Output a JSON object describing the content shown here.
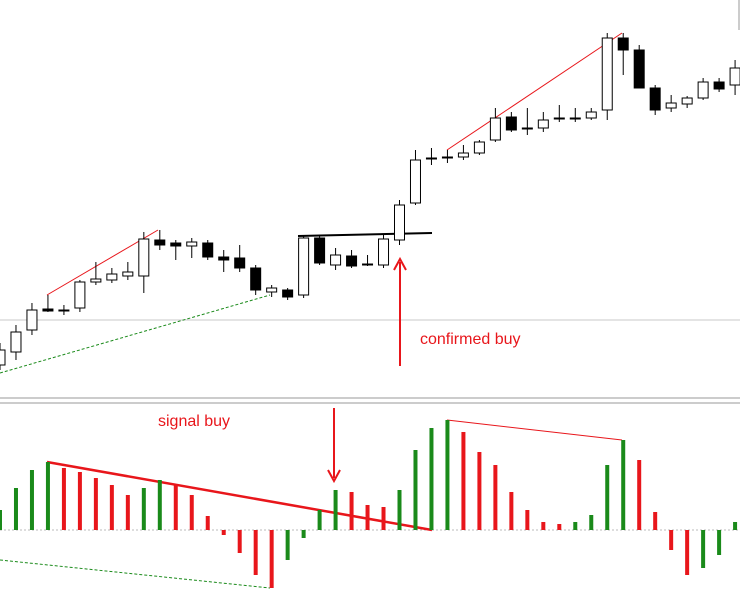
{
  "chart_data": [
    {
      "type": "candlestick",
      "open": [
        35,
        48,
        70,
        91,
        90,
        92,
        118,
        120,
        124,
        124,
        160,
        157,
        154,
        157,
        143,
        142,
        132,
        108,
        110,
        105,
        162,
        135,
        144,
        136,
        135,
        160,
        197,
        242,
        242,
        243,
        247,
        260,
        283,
        272,
        272,
        282,
        282,
        282,
        290,
        362,
        350,
        312,
        292,
        296,
        302,
        318,
        315
      ],
      "high": [
        57,
        75,
        97,
        105,
        95,
        120,
        138,
        132,
        138,
        168,
        170,
        160,
        162,
        160,
        150,
        155,
        135,
        115,
        112,
        165,
        164,
        152,
        150,
        145,
        165,
        200,
        250,
        252,
        250,
        255,
        260,
        292,
        288,
        292,
        288,
        295,
        292,
        292,
        367,
        367,
        355,
        315,
        305,
        304,
        322,
        322,
        340
      ],
      "low": [
        30,
        40,
        65,
        88,
        85,
        88,
        115,
        117,
        120,
        107,
        150,
        140,
        142,
        140,
        128,
        128,
        105,
        103,
        100,
        102,
        135,
        130,
        132,
        134,
        132,
        155,
        195,
        235,
        237,
        240,
        245,
        258,
        268,
        265,
        268,
        278,
        278,
        280,
        280,
        325,
        312,
        285,
        288,
        292,
        300,
        308,
        305
      ],
      "close": [
        50,
        68,
        90,
        89,
        90,
        118,
        121,
        126,
        128,
        161,
        155,
        154,
        158,
        143,
        140,
        132,
        110,
        112,
        103,
        162,
        137,
        145,
        134,
        136,
        161,
        195,
        240,
        242,
        243,
        247,
        258,
        282,
        270,
        272,
        280,
        282,
        282,
        288,
        362,
        350,
        312,
        290,
        297,
        302,
        318,
        311,
        332
      ],
      "up_color": "#ffffff",
      "down_color": "#000000",
      "ylim": [
        0,
        400
      ],
      "annotation": "confirmed buy"
    },
    {
      "type": "bar",
      "values": [
        20,
        42,
        60,
        68,
        62,
        58,
        52,
        45,
        35,
        42,
        50,
        45,
        35,
        14,
        -5,
        -23,
        -45,
        -58,
        -30,
        -8,
        20,
        40,
        38,
        25,
        23,
        40,
        80,
        102,
        110,
        98,
        78,
        65,
        38,
        20,
        8,
        6,
        8,
        15,
        65,
        90,
        70,
        18,
        -20,
        -45,
        -38,
        -25,
        8
      ],
      "colors": [
        "#1a8a1a",
        "#1a8a1a",
        "#1a8a1a",
        "#1a8a1a",
        "#e8161b",
        "#e8161b",
        "#e8161b",
        "#e8161b",
        "#e8161b",
        "#1a8a1a",
        "#1a8a1a",
        "#e8161b",
        "#e8161b",
        "#e8161b",
        "#e8161b",
        "#e8161b",
        "#e8161b",
        "#e8161b",
        "#1a8a1a",
        "#1a8a1a",
        "#1a8a1a",
        "#1a8a1a",
        "#e8161b",
        "#e8161b",
        "#e8161b",
        "#1a8a1a",
        "#1a8a1a",
        "#1a8a1a",
        "#1a8a1a",
        "#e8161b",
        "#e8161b",
        "#e8161b",
        "#e8161b",
        "#e8161b",
        "#e8161b",
        "#e8161b",
        "#1a8a1a",
        "#1a8a1a",
        "#1a8a1a",
        "#1a8a1a",
        "#e8161b",
        "#e8161b",
        "#e8161b",
        "#e8161b",
        "#1a8a1a",
        "#1a8a1a",
        "#1a8a1a"
      ],
      "ylim": [
        -71,
        126
      ],
      "annotation": "signal buy"
    }
  ]
}
